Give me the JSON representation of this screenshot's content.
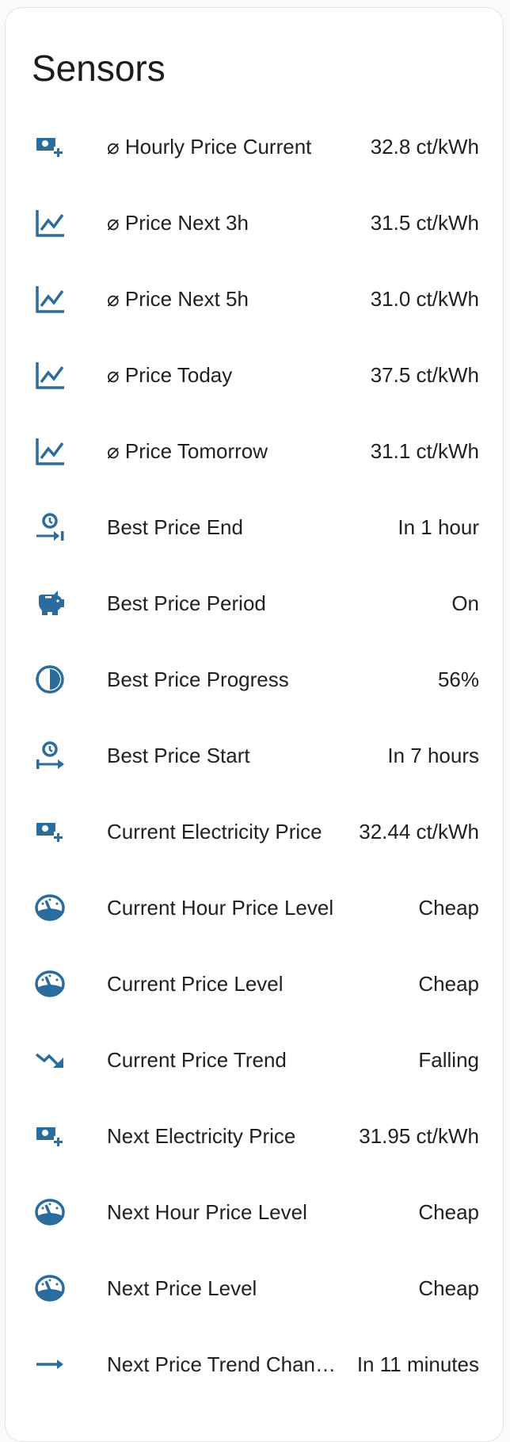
{
  "card": {
    "title": "Sensors"
  },
  "accent_color": "#2b6c9e",
  "rows": [
    {
      "icon": "cash-plus-icon",
      "label": "⌀ Hourly Price Current",
      "value": "32.8 ct/kWh"
    },
    {
      "icon": "chart-line-icon",
      "label": "⌀ Price Next 3h",
      "value": "31.5 ct/kWh"
    },
    {
      "icon": "chart-line-icon",
      "label": "⌀ Price Next 5h",
      "value": "31.0 ct/kWh"
    },
    {
      "icon": "chart-line-icon",
      "label": "⌀ Price Today",
      "value": "37.5 ct/kWh"
    },
    {
      "icon": "chart-line-icon",
      "label": "⌀ Price Tomorrow",
      "value": "31.1 ct/kWh"
    },
    {
      "icon": "clock-end-icon",
      "label": "Best Price End",
      "value": "In 1 hour"
    },
    {
      "icon": "piggy-bank-icon",
      "label": "Best Price Period",
      "value": "On"
    },
    {
      "icon": "circle-half-icon",
      "label": "Best Price Progress",
      "value": "56%"
    },
    {
      "icon": "clock-start-icon",
      "label": "Best Price Start",
      "value": "In 7 hours"
    },
    {
      "icon": "cash-plus-icon",
      "label": "Current Electricity Price",
      "value": "32.44 ct/kWh"
    },
    {
      "icon": "gauge-icon",
      "label": "Current Hour Price Level",
      "value": "Cheap"
    },
    {
      "icon": "gauge-icon",
      "label": "Current Price Level",
      "value": "Cheap"
    },
    {
      "icon": "trending-down-icon",
      "label": "Current Price Trend",
      "value": "Falling"
    },
    {
      "icon": "cash-plus-icon",
      "label": "Next Electricity Price",
      "value": "31.95 ct/kWh"
    },
    {
      "icon": "gauge-icon",
      "label": "Next Hour Price Level",
      "value": "Cheap"
    },
    {
      "icon": "gauge-icon",
      "label": "Next Price Level",
      "value": "Cheap"
    },
    {
      "icon": "arrow-right-icon",
      "label": "Next Price Trend Change",
      "value": "In 11 minutes"
    }
  ]
}
